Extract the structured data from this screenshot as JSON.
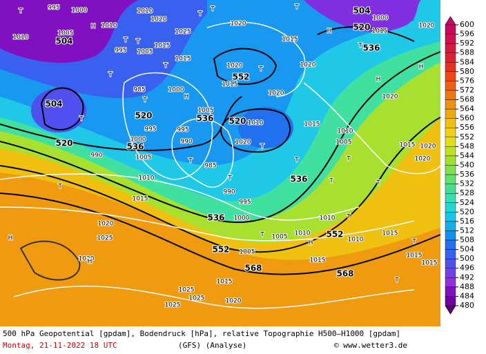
{
  "colorbar": {
    "values": [
      600,
      596,
      592,
      588,
      584,
      580,
      576,
      572,
      568,
      564,
      560,
      556,
      552,
      548,
      544,
      540,
      536,
      532,
      528,
      524,
      520,
      516,
      512,
      508,
      504,
      500,
      496,
      492,
      488,
      484,
      480
    ],
    "colors": [
      "#c80860",
      "#d01050",
      "#d81840",
      "#e02030",
      "#e83020",
      "#f04810",
      "#f06010",
      "#f07810",
      "#f09010",
      "#f0a810",
      "#f0c010",
      "#f0d010",
      "#e0e010",
      "#c0e020",
      "#a0e030",
      "#80e050",
      "#60e070",
      "#40e090",
      "#30e0b0",
      "#20d8d0",
      "#10c8e8",
      "#10b0f0",
      "#1090f0",
      "#2070f0",
      "#3a60f0",
      "#5050f0",
      "#7040f0",
      "#9030e0",
      "#8010c0",
      "#7000a0",
      "#5a0070"
    ]
  },
  "map_labels": [
    "504",
    "H",
    "T",
    "995",
    "1000",
    "1005",
    "1010",
    "1010",
    "T",
    "T",
    "985",
    "T",
    "520",
    "504",
    "T",
    "520",
    "536",
    "990",
    "1000",
    "1005",
    "995",
    "1000",
    "H",
    "536",
    "1005",
    "995",
    "990",
    "T",
    "985",
    "T",
    "990",
    "995",
    "536",
    "1000",
    "1015",
    "1010",
    "T",
    "1020",
    "1025",
    "H",
    "1020",
    "H",
    "552",
    "1005",
    "568",
    "1015",
    "1020",
    "1025",
    "1025",
    "1025",
    "520",
    "1010",
    "T",
    "1020",
    "552",
    "1015",
    "1020",
    "T",
    "1020",
    "1015",
    "T",
    "536",
    "T",
    "T",
    "1010",
    "1005",
    "1010",
    "552",
    "1010",
    "H",
    "1015",
    "1010",
    "1005",
    "T",
    "568",
    "T",
    "T",
    "T",
    "T",
    "1015",
    "1015",
    "1015",
    "1015",
    "1020",
    "1020",
    "H",
    "1020",
    "H",
    "536",
    "520",
    "H",
    "504",
    "1015",
    "T",
    "1020",
    "T",
    "1015",
    "1020",
    "1000",
    "T",
    "1020",
    "1025",
    "1015",
    "1015",
    "T",
    "1020",
    "T",
    "1010",
    "995",
    "1005",
    "T"
  ],
  "footer": {
    "line1": "500 hPa Geopotential [gpdam], Bodendruck [hPa], relative Topographie H500—H1000 [gpdam]",
    "date": "Montag, 21-11-2022  18 UTC",
    "model": "(GFS)  (Analyse)",
    "credit": "© www.wetter3.de"
  }
}
